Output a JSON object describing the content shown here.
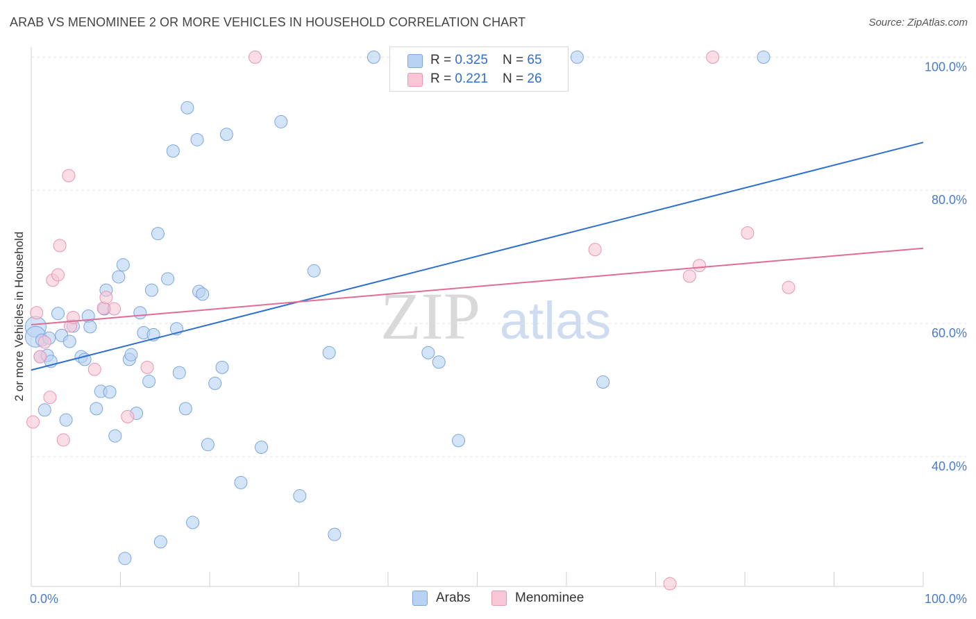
{
  "title": "ARAB VS MENOMINEE 2 OR MORE VEHICLES IN HOUSEHOLD CORRELATION CHART",
  "source": "Source: ZipAtlas.com",
  "watermark": {
    "zip": "ZIP",
    "atlas": "atlas"
  },
  "colors": {
    "arabs_fill": "#b8d2f4",
    "arabs_stroke": "#7aa6dd",
    "arabs_line": "#2d6ed0",
    "menominee_fill": "#f9c6d5",
    "menominee_stroke": "#e895b0",
    "menominee_line": "#e06c96",
    "tick_text": "#4a7cc7"
  },
  "stats": [
    {
      "r_label": "R = ",
      "r_value": "0.325",
      "n_label": "N = ",
      "n_value": "65"
    },
    {
      "r_label": "R = ",
      "r_value": "0.221",
      "n_label": "N = ",
      "n_value": "26"
    }
  ],
  "legend": [
    "Arabs",
    "Menominee"
  ],
  "chart_data": {
    "type": "scatter",
    "title": "ARAB VS MENOMINEE 2 OR MORE VEHICLES IN HOUSEHOLD CORRELATION CHART",
    "xlabel": "",
    "ylabel": "2 or more Vehicles in Household",
    "xlim": [
      0,
      100
    ],
    "ylim": [
      20.5,
      101.5
    ],
    "x_tick_labels": [
      "0.0%",
      "100.0%"
    ],
    "y_ticks": [
      40,
      60,
      80,
      100
    ],
    "y_tick_labels": [
      "40.0%",
      "60.0%",
      "80.0%",
      "100.0%"
    ],
    "grid": true,
    "legend_position": "bottom-center",
    "series": [
      {
        "name": "Arabs",
        "trend": {
          "x": [
            0,
            100
          ],
          "y": [
            53.0,
            87.2
          ]
        },
        "points": [
          [
            0.5,
            59.5
          ],
          [
            0.5,
            58.0
          ],
          [
            1.0,
            55.0
          ],
          [
            1.5,
            47.0
          ],
          [
            1.2,
            57.5
          ],
          [
            1.8,
            55.2
          ],
          [
            2.0,
            57.8
          ],
          [
            2.2,
            54.3
          ],
          [
            3.0,
            61.5
          ],
          [
            3.4,
            58.2
          ],
          [
            3.9,
            45.5
          ],
          [
            4.3,
            57.3
          ],
          [
            4.7,
            59.6
          ],
          [
            5.6,
            55.0
          ],
          [
            6.0,
            54.6
          ],
          [
            6.4,
            61.1
          ],
          [
            6.6,
            59.5
          ],
          [
            7.3,
            47.2
          ],
          [
            7.8,
            49.8
          ],
          [
            8.2,
            62.2
          ],
          [
            8.4,
            65.0
          ],
          [
            8.8,
            49.7
          ],
          [
            9.4,
            43.1
          ],
          [
            9.8,
            67.0
          ],
          [
            10.3,
            68.8
          ],
          [
            10.5,
            24.7
          ],
          [
            11.0,
            54.6
          ],
          [
            11.2,
            55.3
          ],
          [
            11.8,
            46.5
          ],
          [
            12.2,
            61.6
          ],
          [
            12.6,
            58.6
          ],
          [
            13.2,
            51.3
          ],
          [
            13.5,
            65.0
          ],
          [
            13.7,
            58.3
          ],
          [
            14.2,
            73.5
          ],
          [
            14.5,
            27.2
          ],
          [
            15.3,
            66.7
          ],
          [
            15.9,
            85.9
          ],
          [
            16.3,
            59.2
          ],
          [
            16.6,
            52.6
          ],
          [
            17.3,
            47.2
          ],
          [
            17.5,
            92.4
          ],
          [
            18.1,
            30.1
          ],
          [
            18.6,
            87.6
          ],
          [
            18.8,
            64.8
          ],
          [
            19.2,
            64.4
          ],
          [
            19.8,
            41.8
          ],
          [
            20.6,
            51.0
          ],
          [
            21.4,
            53.4
          ],
          [
            21.9,
            88.4
          ],
          [
            23.5,
            36.1
          ],
          [
            25.8,
            41.4
          ],
          [
            28.0,
            90.3
          ],
          [
            30.1,
            34.1
          ],
          [
            31.7,
            67.9
          ],
          [
            33.4,
            55.6
          ],
          [
            34.0,
            28.3
          ],
          [
            38.4,
            100.0
          ],
          [
            44.5,
            55.6
          ],
          [
            45.7,
            54.2
          ],
          [
            47.6,
            100.0
          ],
          [
            47.9,
            42.4
          ],
          [
            61.2,
            100.0
          ],
          [
            64.1,
            51.2
          ],
          [
            82.1,
            100.0
          ]
        ]
      },
      {
        "name": "Menominee",
        "trend": {
          "x": [
            0,
            100
          ],
          "y": [
            59.8,
            71.3
          ]
        },
        "points": [
          [
            0.2,
            45.2
          ],
          [
            0.6,
            61.6
          ],
          [
            1.5,
            57.2
          ],
          [
            2.1,
            48.9
          ],
          [
            2.4,
            66.5
          ],
          [
            3.0,
            67.3
          ],
          [
            3.2,
            71.7
          ],
          [
            3.6,
            42.5
          ],
          [
            4.2,
            82.2
          ],
          [
            4.4,
            59.6
          ],
          [
            4.7,
            60.9
          ],
          [
            7.1,
            53.1
          ],
          [
            8.1,
            62.3
          ],
          [
            8.4,
            63.9
          ],
          [
            9.3,
            62.2
          ],
          [
            10.8,
            46.0
          ],
          [
            13.0,
            53.4
          ],
          [
            25.1,
            100.0
          ],
          [
            63.2,
            71.1
          ],
          [
            71.6,
            20.9
          ],
          [
            73.8,
            67.1
          ],
          [
            74.9,
            68.7
          ],
          [
            76.4,
            100.0
          ],
          [
            80.3,
            73.6
          ],
          [
            84.9,
            65.4
          ],
          [
            1.0,
            55.0
          ]
        ]
      }
    ]
  }
}
